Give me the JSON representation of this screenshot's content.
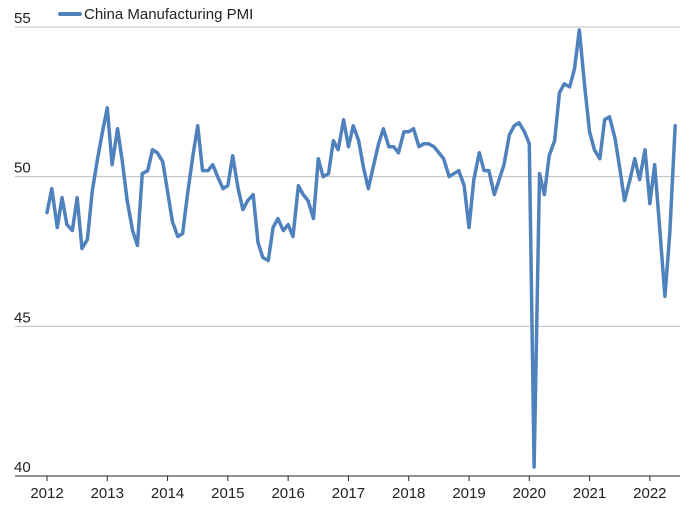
{
  "chart_data": {
    "type": "line",
    "title": "",
    "xlabel": "",
    "ylabel": "",
    "legend": {
      "position": "top-left"
    },
    "grid": {
      "horizontal": true,
      "vertical": false
    },
    "xlim": [
      2012.0,
      2022.5
    ],
    "ylim": [
      40,
      55
    ],
    "yticks": [
      40,
      45,
      50,
      55
    ],
    "xticks": [
      2012,
      2013,
      2014,
      2015,
      2016,
      2017,
      2018,
      2019,
      2020,
      2021,
      2022
    ],
    "series": [
      {
        "name": "China Manufacturing PMI",
        "color": "#4f81bd",
        "x": [
          2012.0,
          2012.08,
          2012.17,
          2012.25,
          2012.33,
          2012.42,
          2012.5,
          2012.58,
          2012.67,
          2012.75,
          2012.83,
          2012.92,
          2013.0,
          2013.08,
          2013.17,
          2013.25,
          2013.33,
          2013.42,
          2013.5,
          2013.58,
          2013.67,
          2013.75,
          2013.83,
          2013.92,
          2014.0,
          2014.08,
          2014.17,
          2014.25,
          2014.33,
          2014.42,
          2014.5,
          2014.58,
          2014.67,
          2014.75,
          2014.83,
          2014.92,
          2015.0,
          2015.08,
          2015.17,
          2015.25,
          2015.33,
          2015.42,
          2015.5,
          2015.58,
          2015.67,
          2015.75,
          2015.83,
          2015.92,
          2016.0,
          2016.08,
          2016.17,
          2016.25,
          2016.33,
          2016.42,
          2016.5,
          2016.58,
          2016.67,
          2016.75,
          2016.83,
          2016.92,
          2017.0,
          2017.08,
          2017.17,
          2017.25,
          2017.33,
          2017.42,
          2017.5,
          2017.58,
          2017.67,
          2017.75,
          2017.83,
          2017.92,
          2018.0,
          2018.08,
          2018.17,
          2018.25,
          2018.33,
          2018.42,
          2018.5,
          2018.58,
          2018.67,
          2018.75,
          2018.83,
          2018.92,
          2019.0,
          2019.08,
          2019.17,
          2019.25,
          2019.33,
          2019.42,
          2019.5,
          2019.58,
          2019.67,
          2019.75,
          2019.83,
          2019.92,
          2020.0,
          2020.08,
          2020.17,
          2020.25,
          2020.33,
          2020.42,
          2020.5,
          2020.58,
          2020.67,
          2020.75,
          2020.83,
          2020.92,
          2021.0,
          2021.08,
          2021.17,
          2021.25,
          2021.33,
          2021.42,
          2021.5,
          2021.58,
          2021.67,
          2021.75,
          2021.83,
          2021.92,
          2022.0,
          2022.08,
          2022.17,
          2022.25,
          2022.33,
          2022.42
        ],
        "values": [
          48.8,
          49.6,
          48.3,
          49.3,
          48.4,
          48.2,
          49.3,
          47.6,
          47.9,
          49.5,
          50.5,
          51.5,
          52.3,
          50.4,
          51.6,
          50.5,
          49.2,
          48.2,
          47.7,
          50.1,
          50.2,
          50.9,
          50.8,
          50.5,
          49.5,
          48.5,
          48.0,
          48.1,
          49.4,
          50.7,
          51.7,
          50.2,
          50.2,
          50.4,
          50.0,
          49.6,
          49.7,
          50.7,
          49.6,
          48.9,
          49.2,
          49.4,
          47.8,
          47.3,
          47.2,
          48.3,
          48.6,
          48.2,
          48.4,
          48.0,
          49.7,
          49.4,
          49.2,
          48.6,
          50.6,
          50.0,
          50.1,
          51.2,
          50.9,
          51.9,
          51.0,
          51.7,
          51.2,
          50.3,
          49.6,
          50.4,
          51.1,
          51.6,
          51.0,
          51.0,
          50.8,
          51.5,
          51.5,
          51.6,
          51.0,
          51.1,
          51.1,
          51.0,
          50.8,
          50.6,
          50.0,
          50.1,
          50.2,
          49.7,
          48.3,
          49.9,
          50.8,
          50.2,
          50.2,
          49.4,
          49.9,
          50.4,
          51.4,
          51.7,
          51.8,
          51.5,
          51.1,
          40.3,
          50.1,
          49.4,
          50.7,
          51.2,
          52.8,
          53.1,
          53.0,
          53.6,
          54.9,
          53.0,
          51.5,
          50.9,
          50.6,
          51.9,
          52.0,
          51.3,
          50.3,
          49.2,
          49.9,
          50.6,
          49.9,
          50.9,
          49.1,
          50.4,
          48.1,
          46.0,
          48.1,
          51.7
        ]
      }
    ]
  }
}
